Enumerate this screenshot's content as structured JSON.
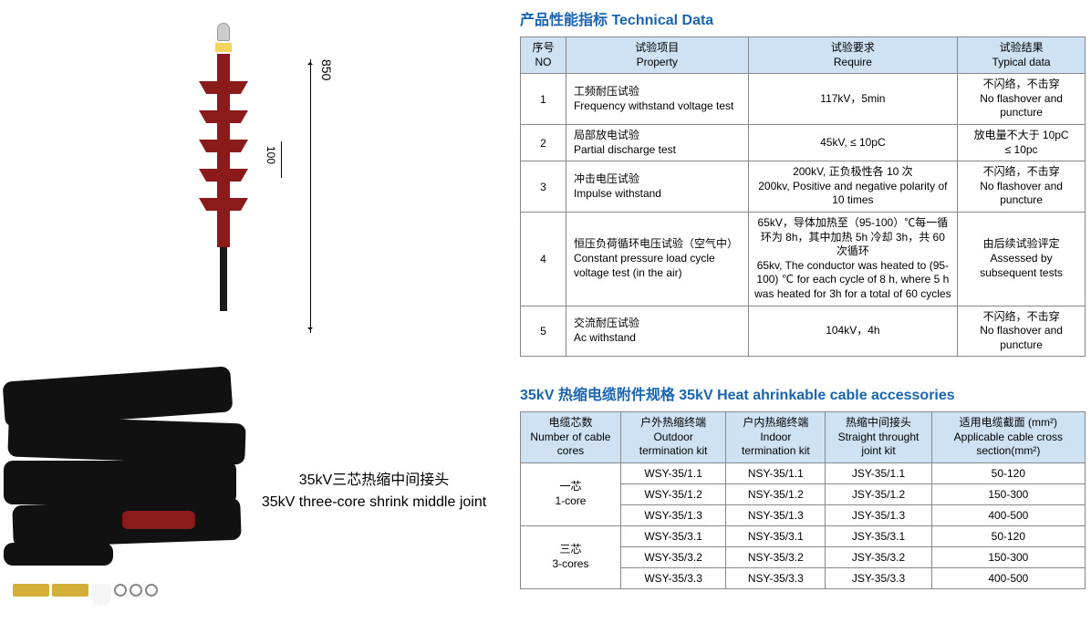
{
  "tech": {
    "title": "产品性能指标 Technical Data",
    "headers": {
      "no": "序号\nNO",
      "property": "试验项目\nProperty",
      "require": "试验要求\nRequire",
      "result": "试验结果\nTypical data"
    },
    "rows": [
      {
        "no": "1",
        "prop": "工频耐压试验\nFrequency withstand voltage test",
        "req": "117kV，5min",
        "res": "不闪络，不击穿\nNo flashover and puncture"
      },
      {
        "no": "2",
        "prop": "局部放电试验\nPartial discharge test",
        "req": "45kV, ≤ 10pC",
        "res": "放电量不大于 10pC\n≤ 10pc"
      },
      {
        "no": "3",
        "prop": "冲击电压试验\nImpulse withstand",
        "req": "200kV, 正负极性各 10 次\n200kv, Positive and negative polarity of 10 times",
        "res": "不闪络，不击穿\nNo flashover and puncture"
      },
      {
        "no": "4",
        "prop": "恒压负荷循环电压试验（空气中）\nConstant pressure load cycle voltage test (in the air)",
        "req": "65kV，导体加热至（95-100）℃每一循环为 8h，其中加热 5h 冷却 3h，共 60 次循环\n65kv, The conductor was heated to (95-100) ℃ for each cycle of 8 h, where 5 h was heated for 3h for a total of 60 cycles",
        "res": "由后续试验评定\nAssessed by subsequent tests"
      },
      {
        "no": "5",
        "prop": "交流耐压试验\nAc withstand",
        "req": "104kV，4h",
        "res": "不闪络，不击穿\nNo flashover and puncture"
      }
    ],
    "col_widths": [
      "50px",
      "200px",
      "230px",
      "140px"
    ]
  },
  "acc": {
    "title": "35kV 热缩电缆附件规格 35kV Heat ahrinkable cable accessories",
    "headers": {
      "cores": "电缆芯数\nNumber of cable cores",
      "outdoor": "户外热缩终端\nOutdoor termination kit",
      "indoor": "户内热缩终端\nIndoor termination kit",
      "joint": "热缩中间接头\nStraight throught joint kit",
      "section": "适用电缆截面 (mm²)\nApplicable cable cross section(mm²)"
    },
    "groups": [
      {
        "label": "一芯\n1-core",
        "rows": [
          {
            "o": "WSY-35/1.1",
            "i": "NSY-35/1.1",
            "j": "JSY-35/1.1",
            "s": "50-120"
          },
          {
            "o": "WSY-35/1.2",
            "i": "NSY-35/1.2",
            "j": "JSY-35/1.2",
            "s": "150-300"
          },
          {
            "o": "WSY-35/1.3",
            "i": "NSY-35/1.3",
            "j": "JSY-35/1.3",
            "s": "400-500"
          }
        ]
      },
      {
        "label": "三芯\n3-cores",
        "rows": [
          {
            "o": "WSY-35/3.1",
            "i": "NSY-35/3.1",
            "j": "JSY-35/3.1",
            "s": "50-120"
          },
          {
            "o": "WSY-35/3.2",
            "i": "NSY-35/3.2",
            "j": "JSY-35/3.2",
            "s": "150-300"
          },
          {
            "o": "WSY-35/3.3",
            "i": "NSY-35/3.3",
            "j": "JSY-35/3.3",
            "s": "400-500"
          }
        ]
      }
    ]
  },
  "caption": {
    "line1": "35kV三芯热缩中间接头",
    "line2": "35kV three-core shrink middle joint"
  },
  "diagram": {
    "dim_total": "850",
    "dim_shed": "100",
    "shed_color": "#8b1a1a"
  },
  "colors": {
    "header_bg": "#cfe2f3",
    "title_color": "#1864b0",
    "border": "#888"
  }
}
